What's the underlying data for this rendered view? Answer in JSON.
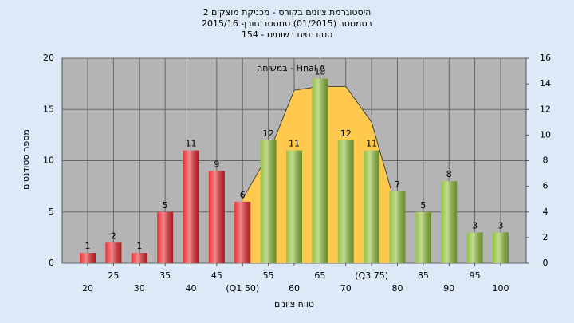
{
  "chart_data": {
    "type": "bar",
    "title": "היסטוגרמת ציונים בקורס - מכניקת מוצקים 2",
    "subtitle": "בסמסטר (01/2015) סמסטר חורף 2015/16",
    "subtitle2": "סטודנטים רשומים - 154",
    "x_label": "טווח ציונים",
    "y_label": "מספר סטודנטים",
    "categories": [
      "20",
      "25",
      "30",
      "35",
      "40",
      "45",
      "(Q1 50)",
      "55",
      "60",
      "65",
      "70",
      "(Q3 75)",
      "80",
      "85",
      "90",
      "95",
      "100"
    ],
    "values": [
      1,
      2,
      1,
      5,
      11,
      9,
      6,
      12,
      11,
      18,
      12,
      11,
      7,
      5,
      8,
      3,
      3
    ],
    "colors": [
      "#e8272b",
      "#e8272b",
      "#e8272b",
      "#e8272b",
      "#e8272b",
      "#e8272b",
      "#e8272b",
      "#8fbf3a",
      "#8fbf3a",
      "#8fbf3a",
      "#8fbf3a",
      "#8fbf3a",
      "#8fbf3a",
      "#8fbf3a",
      "#8fbf3a",
      "#8fbf3a",
      "#8fbf3a"
    ],
    "ylim": [
      0,
      20
    ],
    "yticks": [
      0,
      5,
      10,
      15,
      20
    ],
    "y2lim": [
      0,
      16
    ],
    "y2ticks": [
      0,
      2,
      4,
      6,
      8,
      10,
      12,
      14,
      16
    ],
    "series": [
      {
        "name": "Final A - במשיחה",
        "color": "#ffc94d",
        "axis": "y2",
        "values": [
          null,
          null,
          null,
          null,
          null,
          null,
          5,
          8.5,
          13.5,
          13.8,
          13.8,
          11,
          4,
          null,
          null,
          null,
          null
        ]
      }
    ],
    "grid": true
  }
}
